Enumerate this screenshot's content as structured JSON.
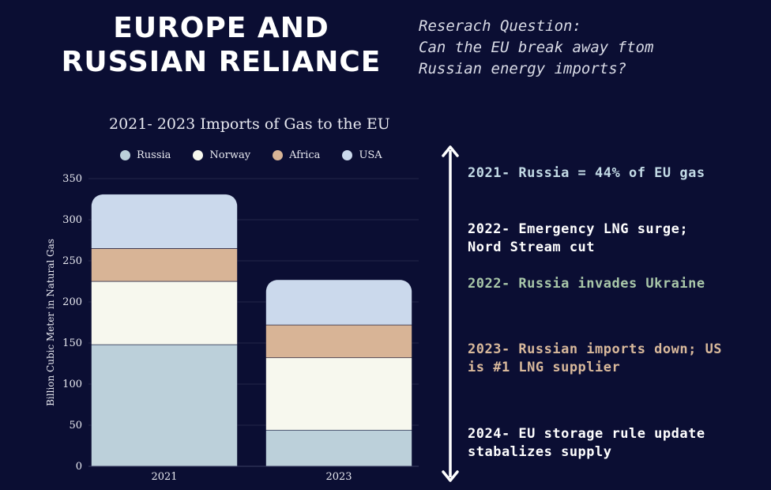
{
  "header": {
    "title_line1": "EUROPE AND",
    "title_line2": "RUSSIAN RELIANCE"
  },
  "research": {
    "line1": "Reserach Question:",
    "line2": "Can the EU break away ftom",
    "line3": "Russian energy imports?"
  },
  "chart_data": {
    "type": "bar",
    "stacked": true,
    "title": "2021- 2023 Imports of Gas to the EU",
    "ylabel": "Billion Cubic Meter in Natural Gas",
    "xlabel": "",
    "categories": [
      "2021",
      "2023"
    ],
    "ylim": [
      0,
      350
    ],
    "yticks": [
      0,
      50,
      100,
      150,
      200,
      250,
      300,
      350
    ],
    "legend_position": "top",
    "series": [
      {
        "name": "Russia",
        "values": [
          148,
          44
        ],
        "color": "#bcd0da"
      },
      {
        "name": "Norway",
        "values": [
          77,
          88
        ],
        "color": "#f7f8ee"
      },
      {
        "name": "Africa",
        "values": [
          40,
          40
        ],
        "color": "#d8b496"
      },
      {
        "name": "USA",
        "values": [
          66,
          55
        ],
        "color": "#cbd9ec"
      }
    ]
  },
  "timeline": [
    {
      "text_line1": "2021- Russia = 44% of EU gas",
      "text_line2": "",
      "color": "#c3dbe6"
    },
    {
      "text_line1": "2022- Emergency LNG surge;",
      "text_line2": "Nord Stream cut",
      "color": "#ffffff"
    },
    {
      "text_line1": "2022- Russia invades Ukraine",
      "text_line2": "",
      "color": "#a9c7a9"
    },
    {
      "text_line1": "2023- Russian imports down; US",
      "text_line2": "is #1 LNG supplier",
      "color": "#d9b99b"
    },
    {
      "text_line1": "2024- EU storage rule update",
      "text_line2": "stabalizes supply",
      "color": "#ffffff"
    }
  ]
}
